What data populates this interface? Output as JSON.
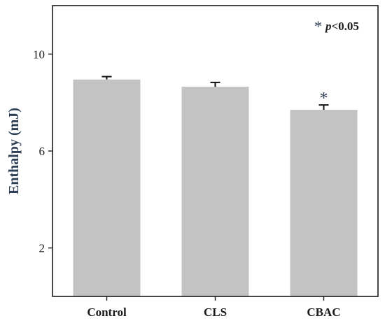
{
  "chart_data": {
    "type": "bar",
    "categories": [
      "Control",
      "CLS",
      "CBAC"
    ],
    "values": [
      8.95,
      8.65,
      7.7
    ],
    "errors": [
      0.12,
      0.18,
      0.2
    ],
    "significance": [
      "",
      "",
      "*"
    ],
    "ylabel": "Enthalpy (mJ)",
    "xlabel": "",
    "ylim": [
      0,
      12
    ],
    "yticks": [
      2,
      6,
      10
    ],
    "annotation": {
      "symbol": "*",
      "p": "p",
      "text": "<0.05"
    },
    "colors": {
      "bar": "#c3c3c3",
      "axis": "#1a1a1a",
      "label": "#2e3f55"
    }
  }
}
